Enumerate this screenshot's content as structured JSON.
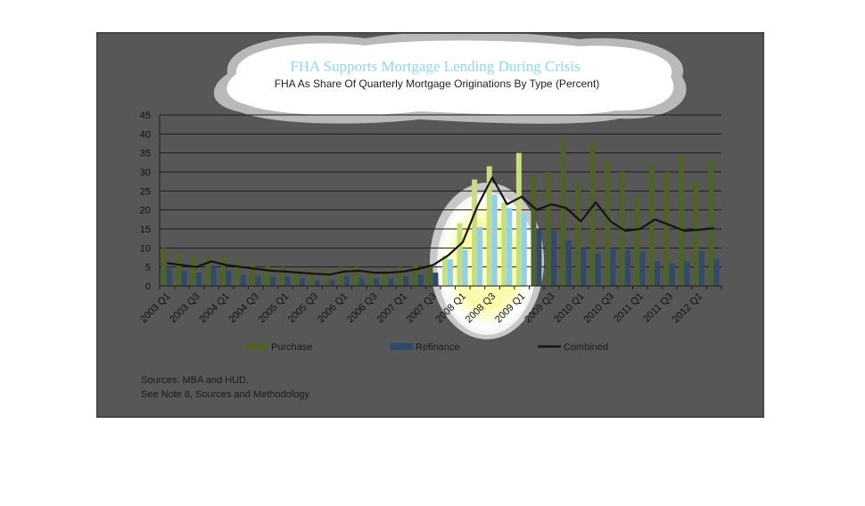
{
  "chart_data": {
    "type": "bar",
    "title": "FHA Supports Mortgage Lending During Crisis",
    "subtitle": "FHA As Share Of Quarterly Mortgage Originations By Type (Percent)",
    "categories": [
      "2003 Q1",
      "2003 Q2",
      "2003 Q3",
      "2003 Q4",
      "2004 Q1",
      "2004 Q2",
      "2004 Q3",
      "2004 Q4",
      "2005 Q1",
      "2005 Q2",
      "2005 Q3",
      "2005 Q4",
      "2006 Q1",
      "2006 Q2",
      "2006 Q3",
      "2006 Q4",
      "2007 Q1",
      "2007 Q2",
      "2007 Q3",
      "2007 Q4",
      "2008 Q1",
      "2008 Q2",
      "2008 Q3",
      "2008 Q4",
      "2009 Q1",
      "2009 Q2",
      "2009 Q3",
      "2009 Q4",
      "2010 Q1",
      "2010 Q2",
      "2010 Q3",
      "2010 Q4",
      "2011 Q1",
      "2011 Q2",
      "2011 Q3",
      "2011 Q4",
      "2012 Q1",
      "2012 Q2"
    ],
    "tick_labels": [
      "2003 Q1",
      "2003 Q3",
      "2004 Q1",
      "2004 Q3",
      "2005 Q1",
      "2005 Q3",
      "2006 Q1",
      "2006 Q3",
      "2007 Q1",
      "2007 Q3",
      "2008 Q1",
      "2008 Q3",
      "2009 Q1",
      "2009 Q3",
      "2010 Q1",
      "2010 Q3",
      "2011 Q1",
      "2011 Q3",
      "2012 Q1"
    ],
    "series": [
      {
        "name": "Purchase",
        "type": "bar",
        "color": "#4f6228",
        "values": [
          10,
          8.5,
          8,
          7.5,
          8,
          6.5,
          6,
          5.5,
          5,
          4.5,
          4.2,
          4.3,
          5,
          5,
          4,
          4.2,
          5,
          5.5,
          5.5,
          8,
          16.5,
          28,
          31.5,
          22,
          35,
          29,
          30,
          39,
          27,
          38,
          33,
          30,
          23.5,
          32,
          30,
          34.5,
          27.5,
          33
        ]
      },
      {
        "name": "Refinance",
        "type": "bar",
        "color": "#2f4a6b",
        "values": [
          4.5,
          4,
          3.5,
          5,
          4,
          3,
          2.5,
          2.5,
          2.5,
          2,
          1.5,
          1.5,
          2.5,
          2,
          2,
          2,
          2.5,
          3,
          3.5,
          7,
          9.5,
          15.5,
          24,
          20.5,
          19,
          15,
          14.5,
          12,
          10,
          8.5,
          10,
          9.5,
          9,
          6.5,
          6,
          6.5,
          9,
          7
        ]
      },
      {
        "name": "Combined",
        "type": "line",
        "color": "#141414",
        "values": [
          6,
          5.5,
          5,
          6.5,
          5.5,
          5,
          4.5,
          4,
          3.8,
          3.5,
          3.2,
          3,
          3.8,
          4,
          3.5,
          3.5,
          3.8,
          4.5,
          5.5,
          8,
          11.5,
          21,
          28.5,
          21.5,
          23.5,
          20,
          21.5,
          20.5,
          17,
          22,
          17,
          14.5,
          15,
          17.5,
          16,
          14.5,
          14.8,
          15.2
        ]
      }
    ],
    "ylim": [
      0,
      45
    ],
    "yticks": [
      0,
      5,
      10,
      15,
      20,
      25,
      30,
      35,
      40,
      45
    ],
    "grid": true,
    "legend_position": "bottom",
    "xlabel": "",
    "ylabel": ""
  },
  "sources": {
    "line1": "Sources:  MBA and HUD.",
    "line2": "See Note 8, Sources and Methodology."
  },
  "colors": {
    "frame_bg": "#575757",
    "highlight_cloud": "#ffffff",
    "highlight_spot": "#fbfbc0"
  }
}
